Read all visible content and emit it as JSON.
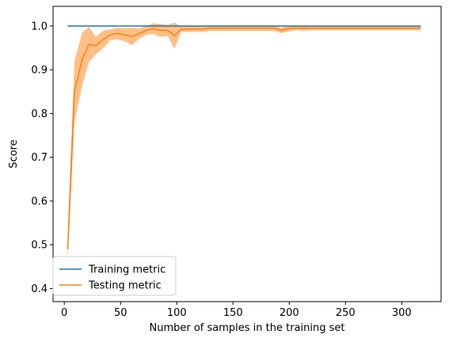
{
  "chart_data": {
    "type": "line",
    "xlabel": "Number of samples in the training set",
    "ylabel": "Score",
    "xlim": [
      -10,
      335
    ],
    "ylim": [
      0.37,
      1.045
    ],
    "xticks": [
      0,
      50,
      100,
      150,
      200,
      250,
      300
    ],
    "yticks": [
      0.4,
      0.5,
      0.6,
      0.7,
      0.8,
      0.9,
      1.0
    ],
    "x": [
      3,
      9,
      16,
      22,
      28,
      35,
      41,
      47,
      54,
      60,
      66,
      73,
      79,
      85,
      92,
      98,
      104,
      111,
      117,
      123,
      130,
      136,
      142,
      149,
      155,
      161,
      168,
      174,
      180,
      187,
      193,
      199,
      206,
      212,
      218,
      225,
      231,
      237,
      244,
      250,
      256,
      263,
      269,
      275,
      282,
      288,
      294,
      301,
      307,
      317
    ],
    "series": [
      {
        "name": "Training metric",
        "color": "#1f77b4",
        "mean": [
          1.0,
          1.0,
          1.0,
          1.0,
          1.0,
          1.0,
          1.0,
          1.0,
          1.0,
          1.0,
          1.0,
          1.0,
          1.0,
          1.0,
          1.0,
          1.0,
          1.0,
          1.0,
          1.0,
          1.0,
          1.0,
          1.0,
          1.0,
          1.0,
          1.0,
          1.0,
          1.0,
          1.0,
          1.0,
          1.0,
          1.0,
          1.0,
          1.0,
          1.0,
          1.0,
          1.0,
          1.0,
          1.0,
          1.0,
          1.0,
          1.0,
          1.0,
          1.0,
          1.0,
          1.0,
          1.0,
          1.0,
          1.0,
          1.0,
          1.0
        ],
        "std": [
          0,
          0,
          0,
          0,
          0,
          0,
          0,
          0,
          0,
          0,
          0,
          0,
          0,
          0,
          0,
          0,
          0,
          0,
          0,
          0,
          0,
          0,
          0,
          0,
          0,
          0,
          0,
          0,
          0,
          0,
          0,
          0,
          0,
          0,
          0,
          0,
          0,
          0,
          0,
          0,
          0,
          0,
          0,
          0,
          0,
          0,
          0,
          0,
          0,
          0
        ]
      },
      {
        "name": "Testing metric",
        "color": "#ff7f0e",
        "mean": [
          0.49,
          0.85,
          0.925,
          0.958,
          0.955,
          0.97,
          0.98,
          0.983,
          0.98,
          0.976,
          0.982,
          0.99,
          0.994,
          0.99,
          0.99,
          0.978,
          0.993,
          0.993,
          0.993,
          0.993,
          0.995,
          0.995,
          0.995,
          0.995,
          0.995,
          0.995,
          0.995,
          0.995,
          0.995,
          0.995,
          0.99,
          0.994,
          0.995,
          0.995,
          0.995,
          0.995,
          0.995,
          0.995,
          0.995,
          0.995,
          0.995,
          0.995,
          0.995,
          0.995,
          0.995,
          0.995,
          0.995,
          0.995,
          0.995,
          0.995
        ],
        "std": [
          0.03,
          0.07,
          0.06,
          0.04,
          0.02,
          0.02,
          0.012,
          0.013,
          0.015,
          0.02,
          0.012,
          0.01,
          0.012,
          0.015,
          0.013,
          0.03,
          0.006,
          0.007,
          0.006,
          0.007,
          0.006,
          0.006,
          0.006,
          0.006,
          0.006,
          0.006,
          0.006,
          0.006,
          0.006,
          0.006,
          0.006,
          0.007,
          0.005,
          0.006,
          0.005,
          0.005,
          0.005,
          0.005,
          0.005,
          0.005,
          0.005,
          0.005,
          0.005,
          0.005,
          0.005,
          0.005,
          0.005,
          0.005,
          0.005,
          0.005
        ]
      }
    ],
    "legend": {
      "position": "lower-left",
      "entries": [
        "Training metric",
        "Testing metric"
      ]
    },
    "grid": false
  }
}
